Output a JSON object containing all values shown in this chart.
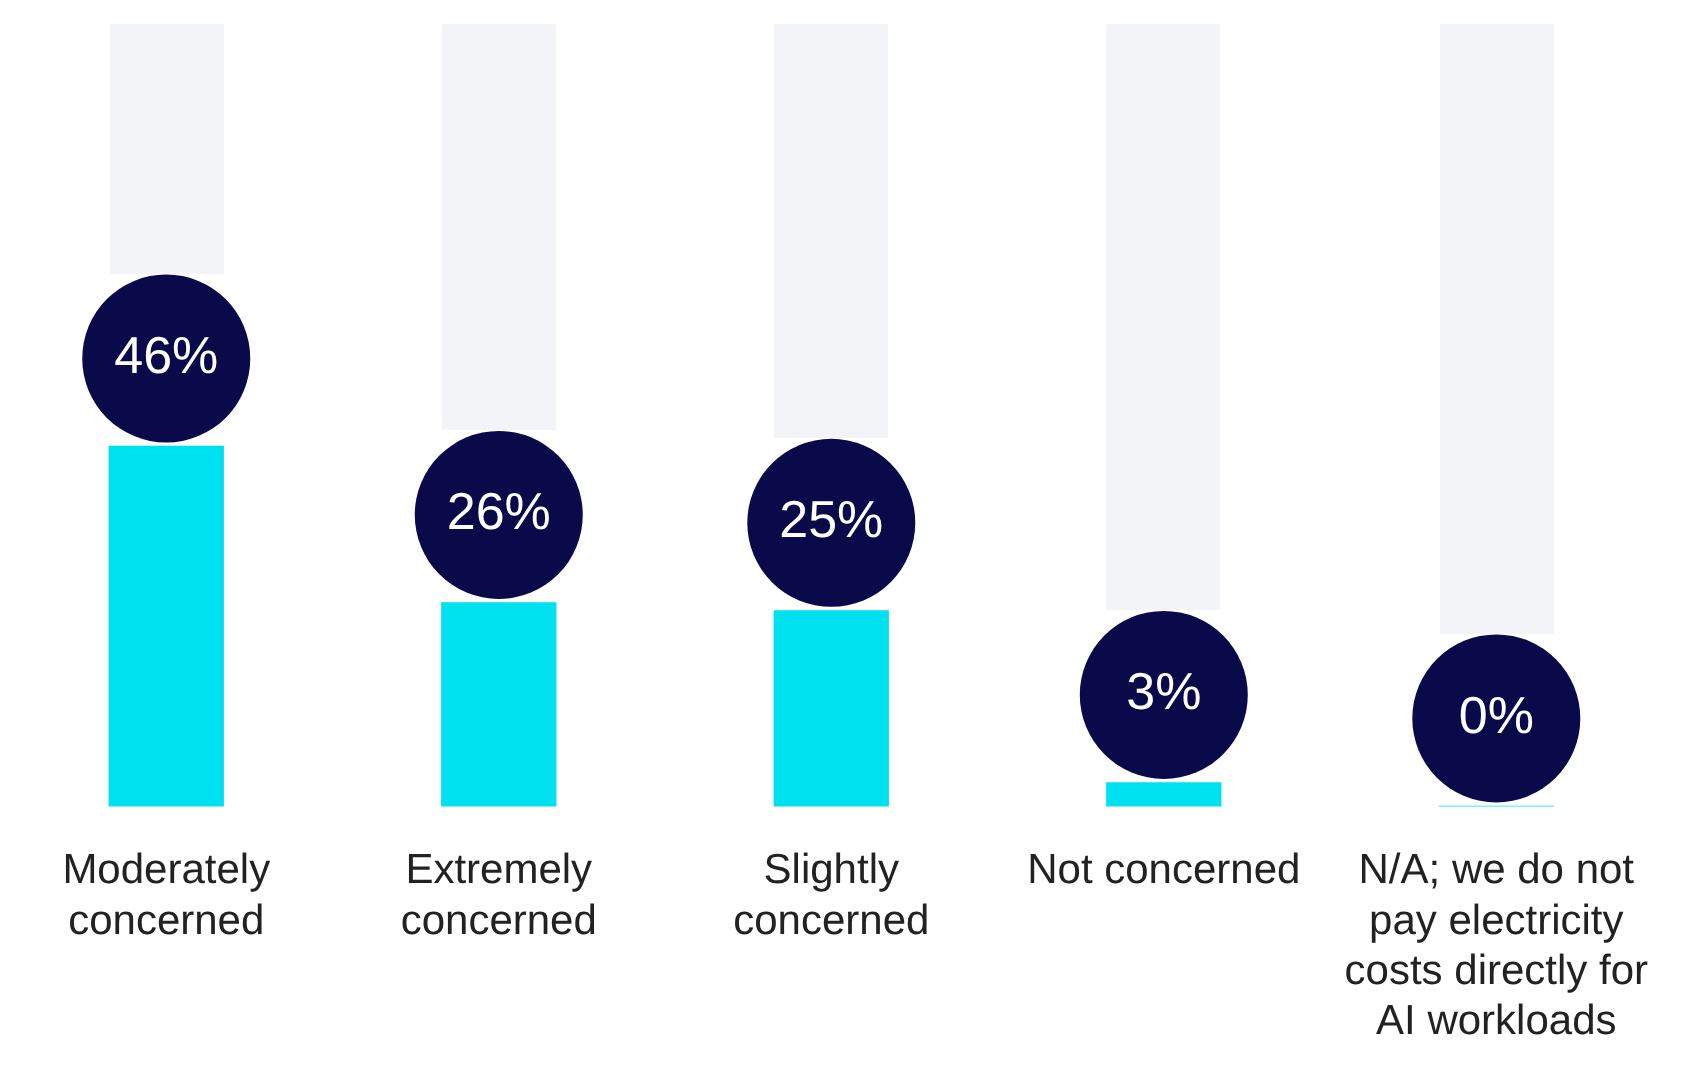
{
  "chart_data": {
    "type": "bar",
    "categories": [
      "Moderately concerned",
      "Extremely concerned",
      "Slightly concerned",
      "Not concerned",
      "N/A; we do not pay electricity costs directly for AI workloads"
    ],
    "values": [
      46,
      26,
      25,
      3,
      0
    ],
    "color": "#00e1f0",
    "ylim": [
      0,
      100
    ],
    "tick_labels": "x",
    "grid": false,
    "legend": false,
    "value_labels": [
      "46%",
      "26%",
      "25%",
      "3%",
      "0%"
    ]
  }
}
